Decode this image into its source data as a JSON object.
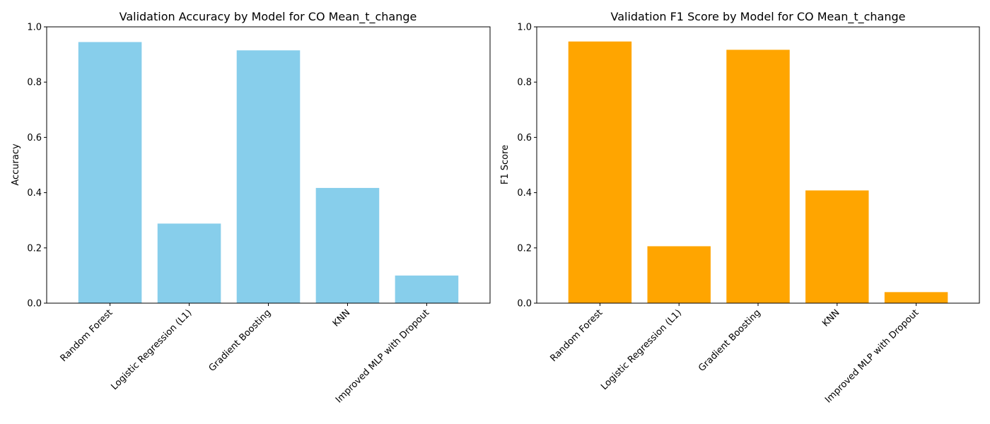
{
  "chart_data": [
    {
      "type": "bar",
      "title": "Validation Accuracy by Model for CO Mean_t_change",
      "xlabel": "",
      "ylabel": "Accuracy",
      "ylim": [
        0,
        1.0
      ],
      "yticks": [
        "0.0",
        "0.2",
        "0.4",
        "0.6",
        "0.8",
        "1.0"
      ],
      "categories": [
        "Random Forest",
        "Logistic Regression (L1)",
        "Gradient Boosting",
        "KNN",
        "Improved MLP with Dropout"
      ],
      "values": [
        0.945,
        0.288,
        0.915,
        0.417,
        0.1
      ],
      "color": "#87ceeb",
      "grid": false
    },
    {
      "type": "bar",
      "title": "Validation F1 Score by Model for CO Mean_t_change",
      "xlabel": "",
      "ylabel": "F1 Score",
      "ylim": [
        0,
        1.0
      ],
      "yticks": [
        "0.0",
        "0.2",
        "0.4",
        "0.6",
        "0.8",
        "1.0"
      ],
      "categories": [
        "Random Forest",
        "Logistic Regression (L1)",
        "Gradient Boosting",
        "KNN",
        "Improved MLP with Dropout"
      ],
      "values": [
        0.947,
        0.206,
        0.917,
        0.408,
        0.04
      ],
      "color": "#ffa500",
      "grid": false
    }
  ]
}
